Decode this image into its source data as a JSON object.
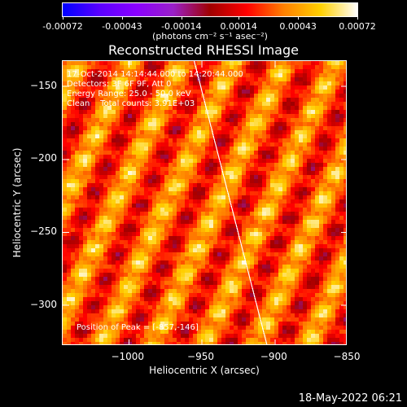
{
  "colorbar": {
    "tick_labels": [
      "-0.00072",
      "-0.00043",
      "-0.00014",
      "0.00014",
      "0.00043",
      "0.00072"
    ],
    "units": "(photons cm⁻² s⁻¹ asec⁻²)",
    "colors": [
      "#0000ff",
      "#5a00ff",
      "#8a00ff",
      "#9a20c8",
      "#a00000",
      "#ff0000",
      "#ff8000",
      "#ffd000",
      "#ffffff"
    ]
  },
  "chart_data": {
    "type": "heatmap",
    "title": "Reconstructed RHESSI Image",
    "xlabel": "Heliocentric X (arcsec)",
    "ylabel": "Heliocentric Y (arcsec)",
    "xlim": [
      -1045,
      -850
    ],
    "ylim": [
      -328,
      -133
    ],
    "x_ticks": [
      -1000,
      -950,
      -900,
      -850
    ],
    "x_tick_labels": [
      "−1000",
      "−950",
      "−900",
      "−850"
    ],
    "y_ticks": [
      -150,
      -200,
      -250,
      -300
    ],
    "y_tick_labels": [
      "−150",
      "−200",
      "−250",
      "−300"
    ],
    "zlim": [
      -0.00072,
      0.00072
    ],
    "grid": false,
    "limb_line": {
      "x": [
        -955,
        -905
      ],
      "y": [
        -133,
        -328
      ]
    }
  },
  "overlay": {
    "line1": "17-Oct-2014 14:14:44.000 to 14:20:44.000",
    "line2": "Detectors: 3F 6F 9F, Att 0",
    "line3": "Energy Range: 25.0 - 50.0 keV",
    "line4": "Clean    Total counts: 3.91E+03",
    "peak": "Position of Peak = [-857,-146]"
  },
  "timestamp": "18-May-2022 06:21"
}
